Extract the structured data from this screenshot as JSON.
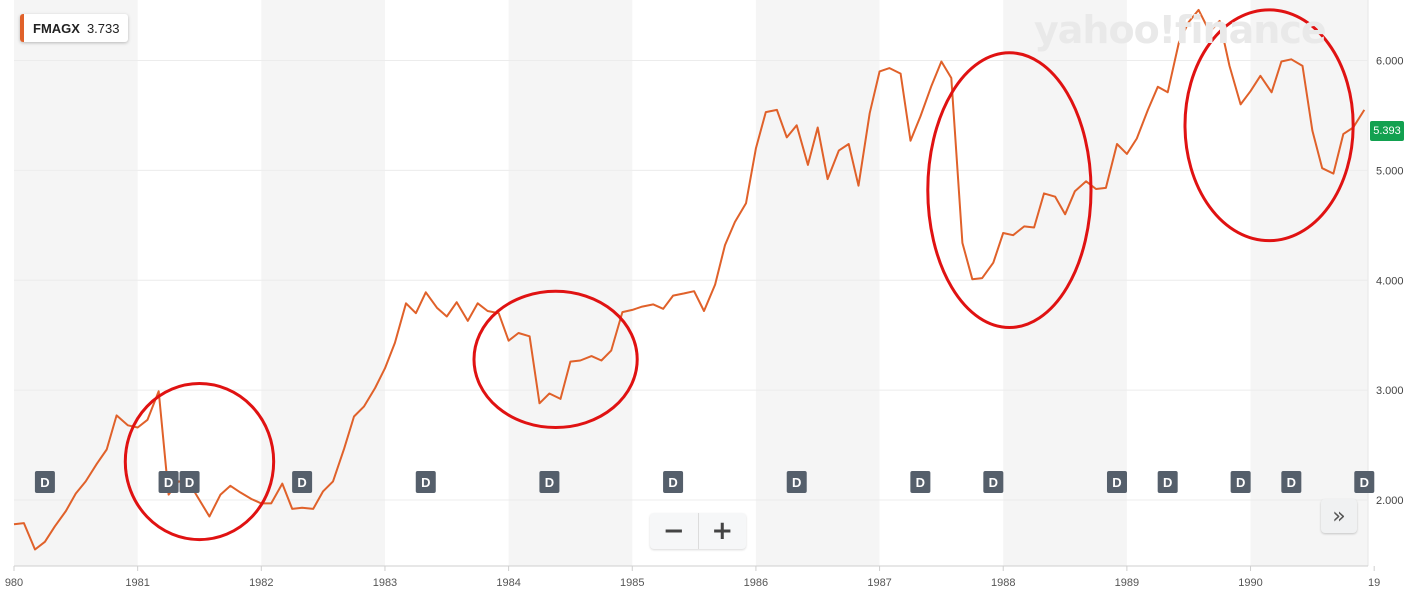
{
  "legend": {
    "symbol": "FMAGX",
    "value": "3.733",
    "color": "#e0612a"
  },
  "watermark": "yahoo!finance",
  "price_tag": {
    "value": "5.393",
    "color": "#12a150"
  },
  "zoom": {
    "minus": "−",
    "plus": "+"
  },
  "scroll_label": "»",
  "dividend_label": "D",
  "chart_data": {
    "type": "line",
    "x_ticks": [
      "980",
      "1981",
      "1982",
      "1983",
      "1984",
      "1985",
      "1986",
      "1987",
      "1988",
      "1989",
      "1990",
      "19"
    ],
    "y_ticks": [
      "2.000",
      "3.000",
      "4.000",
      "5.000",
      "6.000"
    ],
    "ylim": [
      1.4,
      6.55
    ],
    "xlim": [
      1980.0,
      1990.95
    ],
    "grid": true,
    "series": [
      {
        "color": "#e0612a",
        "x": [
          1980.0,
          1980.08,
          1980.17,
          1980.25,
          1980.33,
          1980.42,
          1980.5,
          1980.58,
          1980.67,
          1980.75,
          1980.83,
          1980.92,
          1981.0,
          1981.08,
          1981.17,
          1981.25,
          1981.33,
          1981.42,
          1981.5,
          1981.58,
          1981.67,
          1981.75,
          1981.83,
          1981.92,
          1982.0,
          1982.08,
          1982.17,
          1982.25,
          1982.33,
          1982.42,
          1982.5,
          1982.58,
          1982.67,
          1982.75,
          1982.83,
          1982.92,
          1983.0,
          1983.08,
          1983.17,
          1983.25,
          1983.33,
          1983.42,
          1983.5,
          1983.58,
          1983.67,
          1983.75,
          1983.83,
          1983.92,
          1984.0,
          1984.08,
          1984.17,
          1984.25,
          1984.33,
          1984.42,
          1984.5,
          1984.58,
          1984.67,
          1984.75,
          1984.83,
          1984.92,
          1985.0,
          1985.08,
          1985.17,
          1985.25,
          1985.33,
          1985.42,
          1985.5,
          1985.58,
          1985.67,
          1985.75,
          1985.83,
          1985.92,
          1986.0,
          1986.08,
          1986.17,
          1986.25,
          1986.33,
          1986.42,
          1986.5,
          1986.58,
          1986.67,
          1986.75,
          1986.83,
          1986.92,
          1987.0,
          1987.08,
          1987.17,
          1987.25,
          1987.33,
          1987.42,
          1987.5,
          1987.58,
          1987.67,
          1987.75,
          1987.83,
          1987.92,
          1988.0,
          1988.08,
          1988.17,
          1988.25,
          1988.33,
          1988.42,
          1988.5,
          1988.58,
          1988.67,
          1988.75,
          1988.83,
          1988.92,
          1989.0,
          1989.08,
          1989.17,
          1989.25,
          1989.33,
          1989.42,
          1989.5,
          1989.58,
          1989.67,
          1989.75,
          1989.83,
          1989.92,
          1990.0,
          1990.08,
          1990.17,
          1990.25,
          1990.33,
          1990.42,
          1990.5,
          1990.58,
          1990.67,
          1990.75,
          1990.83,
          1990.92
        ],
        "y": [
          1.78,
          1.79,
          1.55,
          1.62,
          1.76,
          1.9,
          2.06,
          2.17,
          2.33,
          2.46,
          2.77,
          2.68,
          2.66,
          2.73,
          2.99,
          2.05,
          2.17,
          2.15,
          2.0,
          1.85,
          2.05,
          2.13,
          2.07,
          2.01,
          1.97,
          1.97,
          2.15,
          1.92,
          1.93,
          1.92,
          2.08,
          2.17,
          2.47,
          2.76,
          2.85,
          3.02,
          3.2,
          3.43,
          3.79,
          3.7,
          3.89,
          3.75,
          3.67,
          3.8,
          3.63,
          3.79,
          3.72,
          3.7,
          3.45,
          3.52,
          3.49,
          2.88,
          2.97,
          2.92,
          3.26,
          3.27,
          3.31,
          3.27,
          3.36,
          3.71,
          3.73,
          3.76,
          3.78,
          3.74,
          3.86,
          3.88,
          3.9,
          3.72,
          3.96,
          4.32,
          4.53,
          4.7,
          5.2,
          5.53,
          5.55,
          5.3,
          5.41,
          5.05,
          5.39,
          4.92,
          5.18,
          5.24,
          4.86,
          5.52,
          5.9,
          5.93,
          5.88,
          5.27,
          5.49,
          5.77,
          5.99,
          5.84,
          4.34,
          4.01,
          4.02,
          4.16,
          4.43,
          4.41,
          4.49,
          4.48,
          4.79,
          4.76,
          4.6,
          4.81,
          4.9,
          4.83,
          4.84,
          5.24,
          5.15,
          5.29,
          5.55,
          5.76,
          5.71,
          6.16,
          6.35,
          6.46,
          6.26,
          6.36,
          5.95,
          5.6,
          5.72,
          5.86,
          5.71,
          5.99,
          6.01,
          5.95,
          5.36,
          5.02,
          4.97,
          5.33,
          5.39,
          5.55
        ]
      }
    ],
    "dividends_x": [
      1980.25,
      1981.25,
      1981.42,
      1982.33,
      1983.33,
      1984.33,
      1985.33,
      1986.33,
      1987.33,
      1987.92,
      1988.92,
      1989.33,
      1989.92,
      1990.33,
      1990.92
    ],
    "annotations": [
      {
        "shape": "ellipse",
        "color": "#e01212",
        "cx": 1981.5,
        "cy": 2.35,
        "rx": 0.6,
        "ry": 0.71
      },
      {
        "shape": "ellipse",
        "color": "#e01212",
        "cx": 1984.38,
        "cy": 3.28,
        "rx": 0.66,
        "ry": 0.62
      },
      {
        "shape": "ellipse",
        "color": "#e01212",
        "cx": 1988.05,
        "cy": 4.82,
        "rx": 0.66,
        "ry": 1.25
      },
      {
        "shape": "ellipse",
        "color": "#e01212",
        "cx": 1990.15,
        "cy": 5.41,
        "rx": 0.68,
        "ry": 1.05
      }
    ]
  }
}
